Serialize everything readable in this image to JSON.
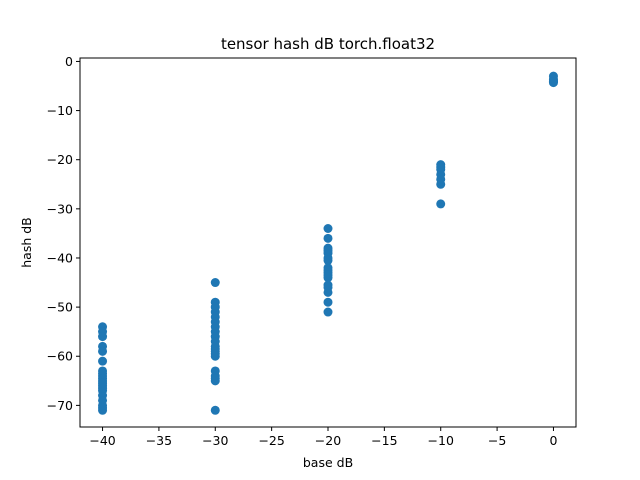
{
  "chart_data": {
    "type": "scatter",
    "title": "tensor hash dB torch.float32",
    "xlabel": "base dB",
    "ylabel": "hash dB",
    "xlim": [
      -42,
      2
    ],
    "ylim": [
      -74.4,
      0.7
    ],
    "xticks": [
      -40,
      -35,
      -30,
      -25,
      -20,
      -15,
      -10,
      -5,
      0
    ],
    "yticks": [
      0,
      -10,
      -20,
      -30,
      -40,
      -50,
      -60,
      -70
    ],
    "xtick_labels": [
      "−40",
      "−35",
      "−30",
      "−25",
      "−20",
      "−15",
      "−10",
      "−5",
      "0"
    ],
    "ytick_labels": [
      "0",
      "−10",
      "−20",
      "−30",
      "−40",
      "−50",
      "−60",
      "−70"
    ],
    "grid": false,
    "marker_color": "#1f77b4",
    "series": [
      {
        "x": [
          -40,
          -40,
          -40,
          -40,
          -40,
          -40,
          -40,
          -40,
          -40,
          -40,
          -40,
          -40,
          -40,
          -40,
          -40,
          -40,
          -40,
          -40,
          -40,
          -40,
          -30,
          -30,
          -30,
          -30,
          -30,
          -30,
          -30,
          -30,
          -30,
          -30,
          -30,
          -30,
          -30,
          -30,
          -30,
          -30,
          -30,
          -30,
          -30,
          -30,
          -20,
          -20,
          -20,
          -20,
          -20,
          -20,
          -20,
          -20,
          -20,
          -20,
          -20,
          -20,
          -20,
          -20,
          -20,
          -20,
          -20,
          -10,
          -10,
          -10,
          -10,
          -10,
          -10,
          -10,
          0,
          0,
          0,
          0,
          0
        ],
        "y": [
          -54,
          -55,
          -56,
          -58,
          -59,
          -61,
          -63,
          -64,
          -65,
          -66,
          -67,
          -68,
          -70,
          -71,
          -63.5,
          -64.5,
          -65.5,
          -66.5,
          -69,
          -70.5,
          -45,
          -49,
          -51,
          -52,
          -53,
          -54,
          -55,
          -56,
          -58,
          -58.5,
          -59,
          -60,
          -63,
          -64,
          -65,
          -71,
          -50,
          -57,
          -59.5,
          -64.5,
          -34,
          -36,
          -38,
          -39,
          -40,
          -42,
          -43,
          -44,
          -46,
          -47,
          -49,
          -51,
          -40.5,
          -42.5,
          -45.5,
          -38.5,
          -43.5,
          -21,
          -22,
          -23,
          -24,
          -25,
          -29,
          -21.5,
          -3,
          -4,
          -4.3,
          -3.6,
          -4.1
        ]
      }
    ]
  }
}
